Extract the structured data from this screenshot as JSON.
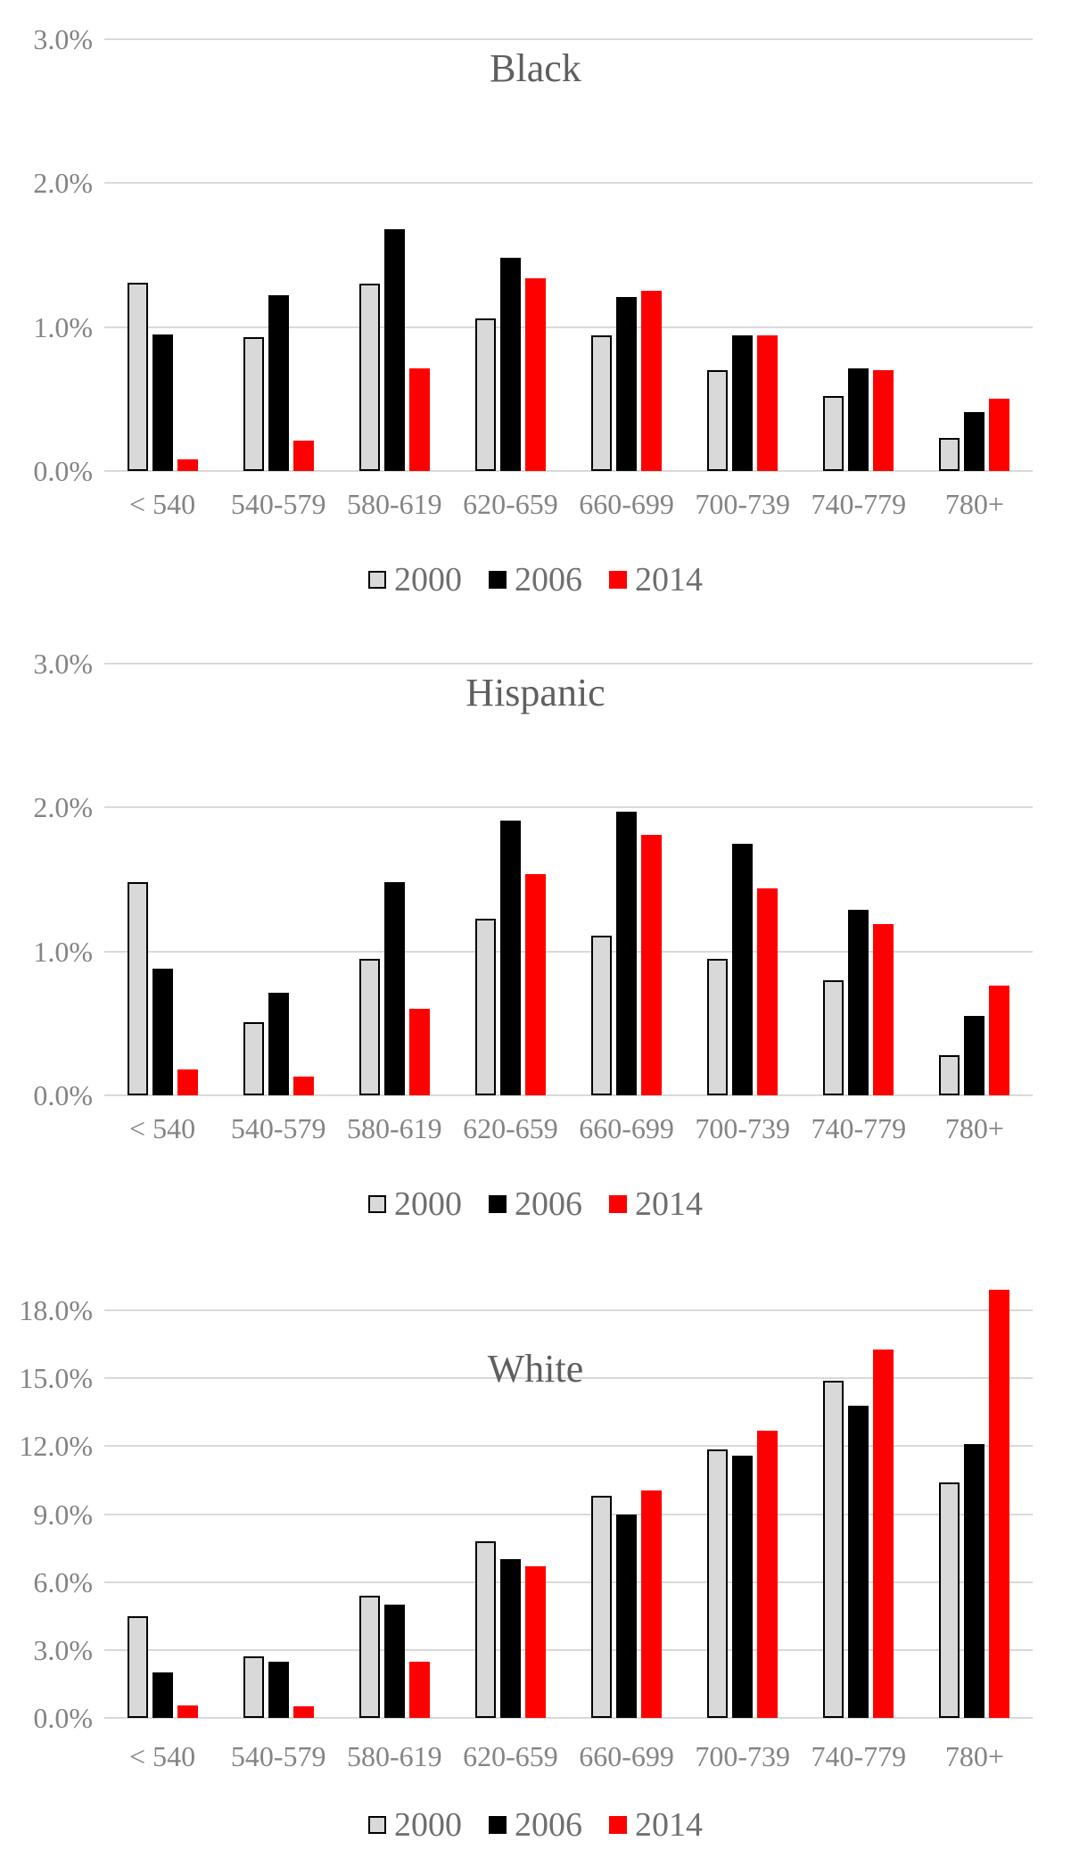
{
  "page": {
    "background": "#ffffff"
  },
  "legend": {
    "position": "bottom",
    "items": [
      {
        "label": "2000",
        "swatch_fill": "#d9d9d9",
        "swatch_border": "#000000"
      },
      {
        "label": "2006",
        "swatch_fill": "#000000",
        "swatch_border": "#000000"
      },
      {
        "label": "2014",
        "swatch_fill": "#ff0000",
        "swatch_border": "#ff0000"
      }
    ]
  },
  "chart_data": [
    {
      "type": "bar",
      "title": "Black",
      "categories": [
        "< 540",
        "540-579",
        "580-619",
        "620-659",
        "660-699",
        "700-739",
        "740-779",
        "780+"
      ],
      "series": [
        {
          "name": "2000",
          "color": "#d9d9d9",
          "values": [
            1.31,
            0.93,
            1.3,
            1.06,
            0.94,
            0.7,
            0.52,
            0.23
          ]
        },
        {
          "name": "2006",
          "color": "#000000",
          "values": [
            0.95,
            1.22,
            1.68,
            1.48,
            1.21,
            0.94,
            0.71,
            0.41
          ]
        },
        {
          "name": "2014",
          "color": "#ff0000",
          "values": [
            0.08,
            0.21,
            0.71,
            1.34,
            1.25,
            0.94,
            0.7,
            0.5
          ]
        }
      ],
      "xlabel": "",
      "ylabel": "",
      "ylim": [
        0,
        3.0
      ],
      "ytick_values": [
        3,
        2,
        1,
        0
      ],
      "yticks": [
        "3.0%",
        "2.0%",
        "1.0%",
        "0.0%"
      ],
      "grid": true,
      "legend_position": "bottom",
      "unit": "percent"
    },
    {
      "type": "bar",
      "title": "Hispanic",
      "categories": [
        "< 540",
        "540-579",
        "580-619",
        "620-659",
        "660-699",
        "700-739",
        "740-779",
        "780+"
      ],
      "series": [
        {
          "name": "2000",
          "color": "#d9d9d9",
          "values": [
            1.48,
            0.51,
            0.95,
            1.23,
            1.11,
            0.95,
            0.8,
            0.28
          ]
        },
        {
          "name": "2006",
          "color": "#000000",
          "values": [
            0.88,
            0.71,
            1.48,
            1.91,
            1.97,
            1.75,
            1.29,
            0.55
          ]
        },
        {
          "name": "2014",
          "color": "#ff0000",
          "values": [
            0.18,
            0.13,
            0.6,
            1.54,
            1.81,
            1.44,
            1.19,
            0.76
          ]
        }
      ],
      "xlabel": "",
      "ylabel": "",
      "ylim": [
        0,
        3.0
      ],
      "ytick_values": [
        3,
        2,
        1,
        0
      ],
      "yticks": [
        "3.0%",
        "2.0%",
        "1.0%",
        "0.0%"
      ],
      "grid": true,
      "legend_position": "bottom",
      "unit": "percent"
    },
    {
      "type": "bar",
      "title": "White",
      "categories": [
        "< 540",
        "540-579",
        "580-619",
        "620-659",
        "660-699",
        "700-739",
        "740-779",
        "780+"
      ],
      "series": [
        {
          "name": "2000",
          "color": "#d9d9d9",
          "values": [
            4.5,
            2.7,
            5.4,
            7.8,
            9.8,
            11.85,
            14.9,
            10.4
          ]
        },
        {
          "name": "2006",
          "color": "#000000",
          "values": [
            2.0,
            2.5,
            5.0,
            7.0,
            9.0,
            11.6,
            13.8,
            12.1
          ]
        },
        {
          "name": "2014",
          "color": "#ff0000",
          "values": [
            0.55,
            0.5,
            2.5,
            6.7,
            10.05,
            12.7,
            16.25,
            18.9
          ]
        }
      ],
      "xlabel": "",
      "ylabel": "",
      "ylim": [
        0,
        18.0
      ],
      "ytick_values": [
        18,
        15,
        12,
        9,
        6,
        3,
        0
      ],
      "yticks": [
        "18.0%",
        "15.0%",
        "12.0%",
        "9.0%",
        "6.0%",
        "3.0%",
        "0.0%"
      ],
      "grid": true,
      "legend_position": "bottom",
      "unit": "percent"
    }
  ]
}
